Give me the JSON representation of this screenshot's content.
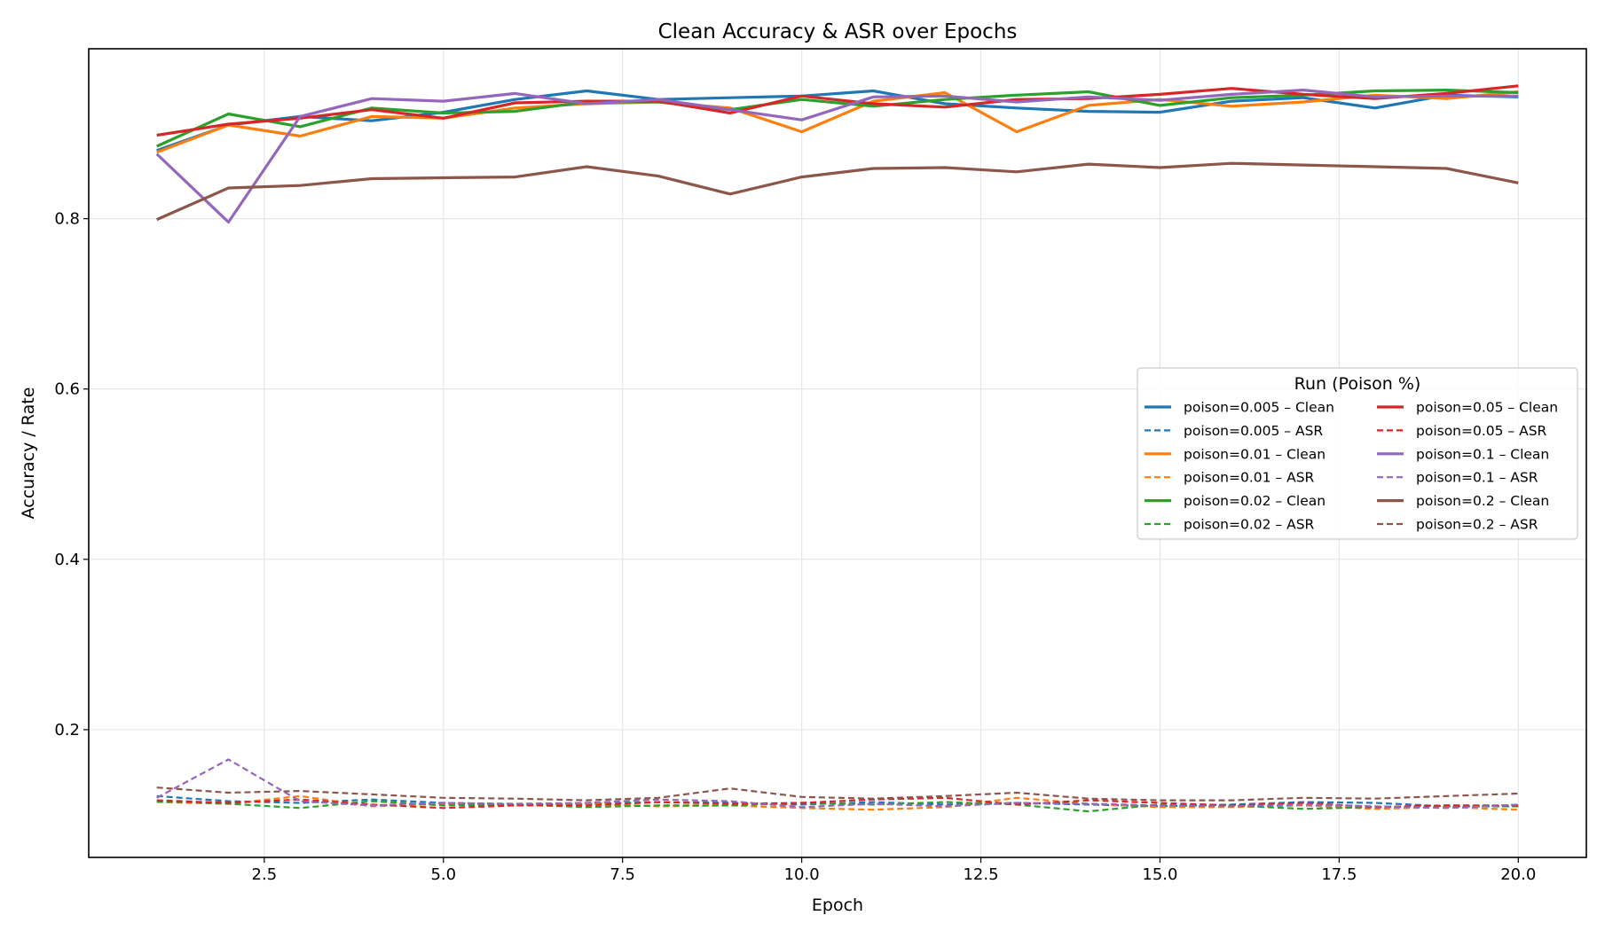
{
  "chart_data": {
    "type": "line",
    "title": "Clean Accuracy & ASR over Epochs",
    "xlabel": "Epoch",
    "ylabel": "Accuracy / Rate",
    "xlim": [
      0.05,
      20.95
    ],
    "ylim": [
      0.05,
      0.9995
    ],
    "xticks": [
      2.5,
      5.0,
      7.5,
      10.0,
      12.5,
      15.0,
      17.5,
      20.0
    ],
    "xtick_labels": [
      "2.5",
      "5.0",
      "7.5",
      "10.0",
      "12.5",
      "15.0",
      "17.5",
      "20.0"
    ],
    "yticks": [
      0.2,
      0.4,
      0.6,
      0.8
    ],
    "ytick_labels": [
      "0.2",
      "0.4",
      "0.6",
      "0.8"
    ],
    "grid": true,
    "legend_title": "Run (Poison %)",
    "legend_position": "center-right",
    "x": [
      1,
      2,
      3,
      4,
      5,
      6,
      7,
      8,
      9,
      10,
      11,
      12,
      13,
      14,
      15,
      16,
      17,
      18,
      19,
      20
    ],
    "series": [
      {
        "name": "poison=0.005 – Clean",
        "color": "#1f77b4",
        "dashed": false,
        "values": [
          0.88,
          0.91,
          0.92,
          0.915,
          0.925,
          0.94,
          0.95,
          0.94,
          0.942,
          0.944,
          0.95,
          0.935,
          0.93,
          0.926,
          0.925,
          0.938,
          0.942,
          0.93,
          0.945,
          0.943
        ]
      },
      {
        "name": "poison=0.005 – ASR",
        "color": "#1f77b4",
        "dashed": true,
        "values": [
          0.122,
          0.116,
          0.114,
          0.118,
          0.114,
          0.112,
          0.113,
          0.115,
          0.114,
          0.112,
          0.115,
          0.112,
          0.114,
          0.112,
          0.11,
          0.112,
          0.115,
          0.114,
          0.11,
          0.11
        ]
      },
      {
        "name": "poison=0.01 – Clean",
        "color": "#ff7f0e",
        "dashed": false,
        "values": [
          0.878,
          0.91,
          0.897,
          0.92,
          0.918,
          0.93,
          0.935,
          0.937,
          0.93,
          0.902,
          0.938,
          0.948,
          0.902,
          0.933,
          0.94,
          0.932,
          0.937,
          0.945,
          0.941,
          0.949
        ]
      },
      {
        "name": "poison=0.01 – ASR",
        "color": "#ff7f0e",
        "dashed": true,
        "values": [
          0.115,
          0.113,
          0.122,
          0.11,
          0.113,
          0.111,
          0.113,
          0.11,
          0.111,
          0.108,
          0.106,
          0.109,
          0.12,
          0.113,
          0.109,
          0.109,
          0.111,
          0.107,
          0.109,
          0.106
        ]
      },
      {
        "name": "poison=0.02 – Clean",
        "color": "#2ca02c",
        "dashed": false,
        "values": [
          0.885,
          0.923,
          0.908,
          0.93,
          0.924,
          0.926,
          0.937,
          0.937,
          0.928,
          0.94,
          0.932,
          0.94,
          0.945,
          0.949,
          0.933,
          0.942,
          0.945,
          0.95,
          0.951,
          0.948
        ]
      },
      {
        "name": "poison=0.02 – ASR",
        "color": "#2ca02c",
        "dashed": true,
        "values": [
          0.116,
          0.113,
          0.108,
          0.116,
          0.111,
          0.112,
          0.109,
          0.111,
          0.111,
          0.114,
          0.112,
          0.115,
          0.112,
          0.104,
          0.112,
          0.111,
          0.107,
          0.109,
          0.111,
          0.11
        ]
      },
      {
        "name": "poison=0.05 – Clean",
        "color": "#d62728",
        "dashed": false,
        "values": [
          0.898,
          0.911,
          0.918,
          0.928,
          0.918,
          0.936,
          0.938,
          0.938,
          0.924,
          0.944,
          0.935,
          0.931,
          0.94,
          0.941,
          0.946,
          0.953,
          0.946,
          0.941,
          0.947,
          0.956
        ]
      },
      {
        "name": "poison=0.05 – ASR",
        "color": "#d62728",
        "dashed": true,
        "values": [
          0.117,
          0.114,
          0.118,
          0.112,
          0.108,
          0.111,
          0.111,
          0.115,
          0.113,
          0.114,
          0.118,
          0.12,
          0.112,
          0.117,
          0.114,
          0.111,
          0.114,
          0.109,
          0.111,
          0.111
        ]
      },
      {
        "name": "poison=0.1 – Clean",
        "color": "#9467bd",
        "dashed": false,
        "values": [
          0.876,
          0.796,
          0.92,
          0.941,
          0.938,
          0.947,
          0.935,
          0.94,
          0.928,
          0.916,
          0.943,
          0.944,
          0.937,
          0.943,
          0.939,
          0.946,
          0.951,
          0.943,
          0.944,
          0.944
        ]
      },
      {
        "name": "poison=0.1 – ASR",
        "color": "#9467bd",
        "dashed": true,
        "values": [
          0.12,
          0.165,
          0.116,
          0.111,
          0.114,
          0.113,
          0.114,
          0.118,
          0.116,
          0.109,
          0.113,
          0.11,
          0.114,
          0.113,
          0.111,
          0.11,
          0.112,
          0.11,
          0.108,
          0.112
        ]
      },
      {
        "name": "poison=0.2 – Clean",
        "color": "#8c564b",
        "dashed": false,
        "values": [
          0.799,
          0.836,
          0.839,
          0.847,
          0.848,
          0.849,
          0.861,
          0.85,
          0.829,
          0.849,
          0.859,
          0.86,
          0.855,
          0.864,
          0.86,
          0.865,
          0.863,
          0.861,
          0.859,
          0.842
        ]
      },
      {
        "name": "poison=0.2 – ASR",
        "color": "#8c564b",
        "dashed": true,
        "values": [
          0.132,
          0.126,
          0.128,
          0.124,
          0.12,
          0.119,
          0.117,
          0.12,
          0.131,
          0.121,
          0.119,
          0.122,
          0.126,
          0.119,
          0.117,
          0.117,
          0.12,
          0.119,
          0.122,
          0.125
        ]
      }
    ]
  }
}
